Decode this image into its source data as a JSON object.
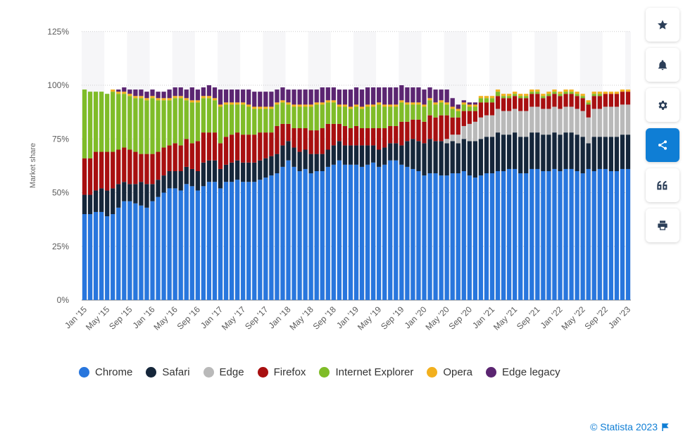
{
  "colors": {
    "Chrome": "#2876dd",
    "Safari": "#15263a",
    "Edge": "#b9b9b9",
    "Firefox": "#a80f10",
    "Internet Explorer": "#7fbc28",
    "Opera": "#f2b01e",
    "Edge legacy": "#5b2571",
    "accent": "#0f7ed5"
  },
  "chart_data": {
    "type": "bar",
    "stacked": true,
    "ylabel": "Market share",
    "ylim": [
      0,
      125
    ],
    "yticks": [
      "0%",
      "25%",
      "50%",
      "75%",
      "100%",
      "125%"
    ],
    "categories": [
      "Jan '15",
      "Feb '15",
      "Mar '15",
      "Apr '15",
      "May '15",
      "Jun '15",
      "Jul '15",
      "Aug '15",
      "Sep '15",
      "Oct '15",
      "Nov '15",
      "Dec '15",
      "Jan '16",
      "Feb '16",
      "Mar '16",
      "Apr '16",
      "May '16",
      "Jun '16",
      "Jul '16",
      "Aug '16",
      "Sep '16",
      "Oct '16",
      "Nov '16",
      "Dec '16",
      "Jan '17",
      "Feb '17",
      "Mar '17",
      "Apr '17",
      "May '17",
      "Jun '17",
      "Jul '17",
      "Aug '17",
      "Sep '17",
      "Oct '17",
      "Nov '17",
      "Dec '17",
      "Jan '18",
      "Feb '18",
      "Mar '18",
      "Apr '18",
      "May '18",
      "Jun '18",
      "Jul '18",
      "Aug '18",
      "Sep '18",
      "Oct '18",
      "Nov '18",
      "Dec '18",
      "Jan '19",
      "Feb '19",
      "Mar '19",
      "Apr '19",
      "May '19",
      "Jun '19",
      "Jul '19",
      "Aug '19",
      "Sep '19",
      "Oct '19",
      "Nov '19",
      "Dec '19",
      "Jan '20",
      "Feb '20",
      "Mar '20",
      "Apr '20",
      "May '20",
      "Jun '20",
      "Jul '20",
      "Aug '20",
      "Sep '20",
      "Oct '20",
      "Nov '20",
      "Dec '20",
      "Jan '21",
      "Feb '21",
      "Mar '21",
      "Apr '21",
      "May '21",
      "Jun '21",
      "Jul '21",
      "Aug '21",
      "Sep '21",
      "Oct '21",
      "Nov '21",
      "Dec '21",
      "Jan '22",
      "Feb '22",
      "Mar '22",
      "Apr '22",
      "May '22",
      "Jun '22",
      "Jul '22",
      "Aug '22",
      "Sep '22",
      "Oct '22",
      "Nov '22",
      "Dec '22",
      "Jan '23"
    ],
    "xticks_shown": [
      "Jan '15",
      "May '15",
      "Sep '15",
      "Jan '16",
      "May '16",
      "Sep '16",
      "Jan '17",
      "May '17",
      "Sep '17",
      "Jan '18",
      "May '18",
      "Sep '18",
      "Jan '19",
      "May '19",
      "Sep '19",
      "Jan '20",
      "May '20",
      "Sep '20",
      "Jan '21",
      "May '21",
      "Sep '21",
      "Jan '22",
      "May '22",
      "Sep '22",
      "Jan '23"
    ],
    "series": [
      {
        "name": "Chrome",
        "values": [
          40,
          40,
          41,
          41,
          39,
          40,
          43,
          46,
          46,
          45,
          44,
          43,
          46,
          48,
          50,
          52,
          52,
          51,
          54,
          53,
          51,
          53,
          55,
          55,
          52,
          55,
          55,
          56,
          55,
          55,
          55,
          56,
          57,
          58,
          59,
          62,
          65,
          62,
          60,
          61,
          59,
          60,
          60,
          62,
          63,
          65,
          63,
          63,
          63,
          62,
          63,
          64,
          62,
          63,
          65,
          65,
          63,
          62,
          61,
          60,
          58,
          59,
          59,
          58,
          58,
          59,
          59,
          60,
          58,
          57,
          58,
          59,
          59,
          60,
          60,
          61,
          61,
          59,
          59,
          61,
          61,
          60,
          60,
          61,
          60,
          61,
          61,
          60,
          59,
          61,
          60,
          61,
          61,
          60,
          60,
          61,
          61
        ]
      },
      {
        "name": "Safari",
        "values": [
          9,
          9,
          10,
          11,
          12,
          12,
          11,
          9,
          8,
          9,
          11,
          11,
          8,
          8,
          8,
          8,
          8,
          9,
          8,
          8,
          9,
          11,
          10,
          10,
          9,
          8,
          9,
          9,
          9,
          9,
          9,
          9,
          9,
          9,
          9,
          10,
          9,
          9,
          9,
          9,
          9,
          8,
          8,
          8,
          9,
          9,
          9,
          9,
          9,
          10,
          9,
          8,
          8,
          8,
          8,
          8,
          9,
          12,
          14,
          14,
          15,
          16,
          15,
          16,
          15,
          15,
          14,
          15,
          16,
          17,
          17,
          17,
          17,
          18,
          17,
          16,
          17,
          17,
          17,
          17,
          17,
          17,
          17,
          17,
          17,
          17,
          17,
          17,
          17,
          12,
          16,
          15,
          15,
          16,
          16,
          16,
          16
        ]
      },
      {
        "name": "Edge",
        "values": [
          0,
          0,
          0,
          0,
          0,
          0,
          0,
          0,
          0,
          0,
          0,
          0,
          0,
          0,
          0,
          0,
          0,
          0,
          0,
          0,
          0,
          0,
          0,
          0,
          0,
          0,
          0,
          0,
          0,
          0,
          0,
          0,
          0,
          0,
          0,
          0,
          0,
          0,
          0,
          0,
          0,
          0,
          0,
          0,
          0,
          0,
          0,
          0,
          0,
          0,
          0,
          0,
          0,
          0,
          0,
          0,
          0,
          0,
          0,
          0,
          0,
          0,
          0,
          0,
          2,
          3,
          4,
          6,
          8,
          9,
          10,
          10,
          10,
          11,
          11,
          11,
          11,
          12,
          12,
          12,
          12,
          12,
          12,
          12,
          12,
          12,
          12,
          12,
          12,
          12,
          13,
          13,
          14,
          14,
          14,
          14,
          14
        ]
      },
      {
        "name": "Firefox",
        "values": [
          17,
          17,
          18,
          17,
          18,
          17,
          16,
          16,
          16,
          15,
          13,
          14,
          14,
          13,
          13,
          12,
          13,
          12,
          13,
          12,
          14,
          14,
          13,
          13,
          12,
          13,
          13,
          13,
          13,
          13,
          13,
          13,
          12,
          11,
          13,
          10,
          8,
          9,
          11,
          10,
          11,
          11,
          12,
          12,
          10,
          8,
          9,
          8,
          9,
          8,
          8,
          8,
          10,
          9,
          8,
          8,
          11,
          9,
          9,
          10,
          10,
          11,
          11,
          12,
          11,
          8,
          8,
          7,
          6,
          5,
          7,
          6,
          6,
          6,
          6,
          6,
          6,
          6,
          6,
          6,
          6,
          5,
          6,
          6,
          6,
          6,
          6,
          6,
          6,
          6,
          6,
          6,
          6,
          6,
          6,
          6,
          6
        ]
      },
      {
        "name": "Internet Explorer",
        "values": [
          32,
          31,
          28,
          28,
          27,
          28,
          26,
          25,
          25,
          25,
          26,
          25,
          26,
          24,
          22,
          21,
          21,
          22,
          18,
          19,
          18,
          16,
          16,
          15,
          17,
          15,
          14,
          13,
          14,
          13,
          12,
          11,
          11,
          11,
          10,
          10,
          9,
          10,
          10,
          10,
          11,
          12,
          11,
          10,
          10,
          8,
          9,
          9,
          9,
          9,
          10,
          10,
          11,
          10,
          9,
          9,
          9,
          8,
          7,
          7,
          7,
          7,
          6,
          6,
          5,
          4,
          3,
          3,
          2,
          2,
          2,
          2,
          2,
          2,
          1,
          1,
          1,
          1,
          1,
          1,
          1,
          1,
          1,
          1,
          1,
          1,
          1,
          1,
          1,
          1,
          1,
          1,
          0,
          0,
          0,
          0,
          0
        ]
      },
      {
        "name": "Opera",
        "values": [
          0,
          0,
          0,
          0,
          0,
          1,
          1,
          1,
          1,
          1,
          1,
          1,
          1,
          1,
          1,
          1,
          1,
          1,
          1,
          1,
          1,
          1,
          1,
          1,
          1,
          1,
          1,
          1,
          1,
          1,
          1,
          1,
          1,
          1,
          1,
          1,
          1,
          1,
          1,
          1,
          1,
          1,
          1,
          1,
          1,
          1,
          1,
          1,
          1,
          1,
          1,
          1,
          1,
          1,
          1,
          1,
          1,
          1,
          1,
          1,
          1,
          1,
          1,
          1,
          1,
          1,
          1,
          1,
          1,
          1,
          1,
          1,
          1,
          1,
          1,
          1,
          1,
          1,
          1,
          1,
          1,
          1,
          1,
          1,
          1,
          1,
          1,
          1,
          1,
          1,
          1,
          1,
          1,
          1,
          1,
          1,
          1
        ]
      },
      {
        "name": "Edge legacy",
        "values": [
          0,
          0,
          0,
          0,
          0,
          0,
          1,
          2,
          2,
          3,
          3,
          3,
          3,
          3,
          3,
          4,
          4,
          4,
          4,
          6,
          5,
          4,
          5,
          5,
          7,
          6,
          6,
          6,
          6,
          7,
          7,
          7,
          7,
          7,
          6,
          6,
          6,
          7,
          7,
          7,
          7,
          6,
          7,
          6,
          6,
          7,
          7,
          8,
          8,
          8,
          8,
          8,
          7,
          8,
          8,
          8,
          7,
          7,
          7,
          7,
          7,
          5,
          6,
          5,
          6,
          4,
          2,
          1,
          1,
          1,
          0,
          0,
          0,
          0,
          0,
          0,
          0,
          0,
          0,
          0,
          0,
          0,
          0,
          0,
          0,
          0,
          0,
          0,
          0,
          0,
          0,
          0,
          0,
          0,
          0,
          0,
          0
        ]
      }
    ]
  },
  "toolbar": [
    {
      "name": "favorite-button",
      "icon": "star-icon"
    },
    {
      "name": "notification-button",
      "icon": "bell-icon"
    },
    {
      "name": "settings-button",
      "icon": "gear-icon"
    },
    {
      "name": "share-button",
      "icon": "share-icon",
      "active": true
    },
    {
      "name": "cite-button",
      "icon": "quote-icon"
    },
    {
      "name": "print-button",
      "icon": "print-icon"
    }
  ],
  "credit": "© Statista 2023"
}
